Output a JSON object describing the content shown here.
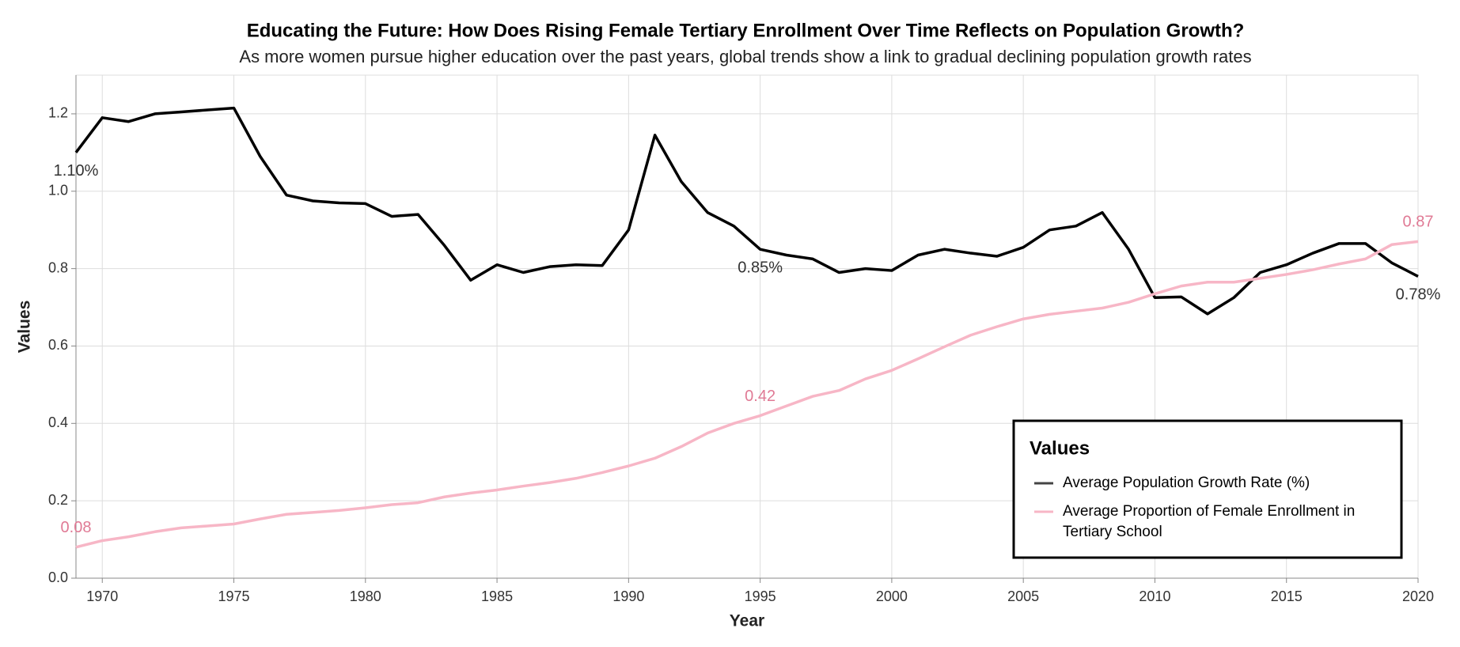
{
  "chart_data": {
    "type": "line",
    "title": "Educating the Future: How Does Rising Female Tertiary Enrollment Over Time Reflects on Population Growth?",
    "subtitle": "As more women pursue higher education over the past years, global trends show a link to gradual declining population growth rates",
    "x_label": "Year",
    "y_label": "Values",
    "legend_title": "Values",
    "x": [
      1969,
      1970,
      1971,
      1972,
      1973,
      1974,
      1975,
      1976,
      1977,
      1978,
      1979,
      1980,
      1981,
      1982,
      1983,
      1984,
      1985,
      1986,
      1987,
      1988,
      1989,
      1990,
      1991,
      1992,
      1993,
      1994,
      1995,
      1996,
      1997,
      1998,
      1999,
      2000,
      2001,
      2002,
      2003,
      2004,
      2005,
      2006,
      2007,
      2008,
      2009,
      2010,
      2011,
      2012,
      2013,
      2014,
      2015,
      2016,
      2017,
      2018,
      2019,
      2020
    ],
    "series": [
      {
        "name": "Average Population Growth Rate (%)",
        "color": "#000000",
        "values": [
          1.1,
          1.19,
          1.18,
          1.2,
          1.205,
          1.21,
          1.215,
          1.09,
          0.99,
          0.975,
          0.97,
          0.968,
          0.935,
          0.94,
          0.86,
          0.77,
          0.81,
          0.79,
          0.805,
          0.81,
          0.808,
          0.9,
          1.145,
          1.025,
          0.945,
          0.91,
          0.85,
          0.835,
          0.825,
          0.79,
          0.8,
          0.795,
          0.835,
          0.85,
          0.84,
          0.832,
          0.855,
          0.9,
          0.91,
          0.945,
          0.85,
          0.725,
          0.727,
          0.683,
          0.725,
          0.79,
          0.81,
          0.84,
          0.865,
          0.865,
          0.815,
          0.78
        ],
        "value_labels": [
          "1.10%",
          null,
          null,
          null,
          null,
          null,
          null,
          null,
          null,
          null,
          null,
          null,
          null,
          null,
          null,
          null,
          null,
          null,
          null,
          null,
          null,
          null,
          null,
          null,
          null,
          null,
          "0.85%",
          null,
          null,
          null,
          null,
          null,
          null,
          null,
          null,
          null,
          null,
          null,
          null,
          null,
          null,
          null,
          null,
          null,
          null,
          null,
          null,
          null,
          null,
          null,
          null,
          "0.78%"
        ]
      },
      {
        "name": "Average Proportion of Female Enrollment in Tertiary School",
        "color": "#f7b6c6",
        "values": [
          0.08,
          0.097,
          0.107,
          0.12,
          0.13,
          0.135,
          0.14,
          0.153,
          0.165,
          0.17,
          0.175,
          0.182,
          0.19,
          0.195,
          0.21,
          0.22,
          0.228,
          0.238,
          0.247,
          0.258,
          0.273,
          0.29,
          0.31,
          0.34,
          0.375,
          0.4,
          0.42,
          0.445,
          0.47,
          0.485,
          0.515,
          0.537,
          0.567,
          0.598,
          0.628,
          0.65,
          0.67,
          0.682,
          0.69,
          0.698,
          0.713,
          0.735,
          0.755,
          0.765,
          0.765,
          0.775,
          0.785,
          0.797,
          0.812,
          0.825,
          0.862,
          0.87
        ],
        "value_labels": [
          "0.08",
          null,
          null,
          null,
          null,
          null,
          null,
          null,
          null,
          null,
          null,
          null,
          null,
          null,
          null,
          null,
          null,
          null,
          null,
          null,
          null,
          null,
          null,
          null,
          null,
          null,
          "0.42",
          null,
          null,
          null,
          null,
          null,
          null,
          null,
          null,
          null,
          null,
          null,
          null,
          null,
          null,
          null,
          null,
          null,
          null,
          null,
          null,
          null,
          null,
          null,
          null,
          "0.87"
        ]
      }
    ],
    "xlim": [
      1969,
      2020
    ],
    "xticks": [
      1970,
      1975,
      1980,
      1985,
      1990,
      1995,
      2000,
      2005,
      2010,
      2015,
      2020
    ],
    "ylim": [
      0,
      1.3
    ],
    "yticks": [
      {
        "value": 0,
        "label": "0.0"
      },
      0.2,
      0.4,
      0.6,
      0.8,
      {
        "value": 1.0,
        "label": "1.0"
      },
      1.2
    ],
    "grid": true
  }
}
